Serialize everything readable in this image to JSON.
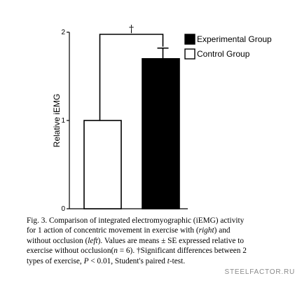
{
  "chart_data": {
    "type": "bar",
    "categories": [
      "Control Group",
      "Experimental Group"
    ],
    "values": [
      1.0,
      1.7
    ],
    "errors": [
      0,
      0.12
    ],
    "ylabel": "Relative iEMG",
    "xlabel": "",
    "ylim": [
      0,
      2
    ],
    "yticks": [
      "0",
      "1",
      "2"
    ],
    "legend": {
      "placement": "top-right",
      "entries": [
        {
          "label": "Experimental Group",
          "fill": "#000000"
        },
        {
          "label": "Control Group",
          "fill": "#ffffff"
        }
      ]
    },
    "annotation": "†",
    "grid": false
  },
  "caption": {
    "line1": "Fig. 3.  Comparison of integrated electromyographic (iEMG) activity",
    "line2a": "for 1 action of concentric movement in exercise with (",
    "line2b": "right",
    "line2c": ") and",
    "line3a": "without occlusion (",
    "line3b": "left",
    "line3c": "). Values are means ± SE expressed relative to",
    "line4a": "exercise without occlusion(",
    "line4b": "n",
    "line4c": " = 6). †Significant differences between 2",
    "line5a": "types of exercise, ",
    "line5b": "P",
    "line5c": " < 0.01, Student's paired ",
    "line5d": "t",
    "line5e": "-test."
  },
  "watermark": "STEELFACTOR.RU"
}
